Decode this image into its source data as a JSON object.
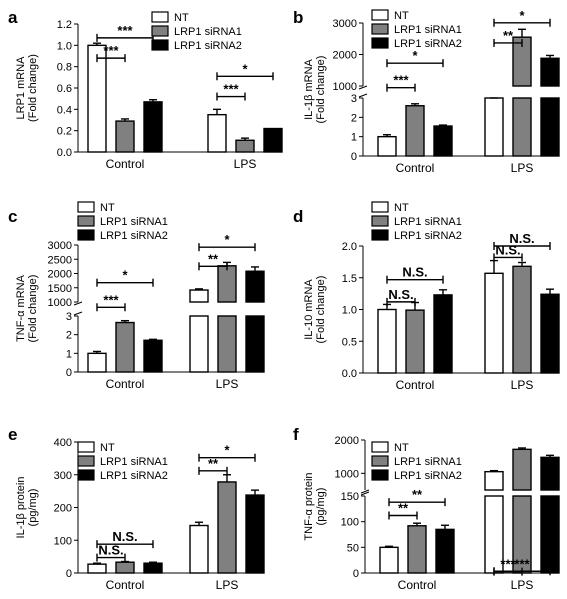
{
  "legend_labels": [
    "NT",
    "LRP1 siRNA1",
    "LRP1 siRNA2"
  ],
  "colors": {
    "NT": "#ffffff",
    "LRP1 siRNA1": "#808080",
    "LRP1 siRNA2": "#000000"
  },
  "chart_data": [
    {
      "panel": "a",
      "type": "bar",
      "categories": [
        "Control",
        "LPS"
      ],
      "ylabel": [
        "LRP1 mRNA",
        "(Fold change)"
      ],
      "ylim": [
        0.0,
        1.2
      ],
      "yticks": [
        "0.0",
        "0.2",
        "0.4",
        "0.6",
        "0.8",
        "1.0",
        "1.2"
      ],
      "series": [
        {
          "name": "NT",
          "values": [
            1.0,
            0.35
          ],
          "err": [
            0.02,
            0.05
          ]
        },
        {
          "name": "LRP1 siRNA1",
          "values": [
            0.29,
            0.11
          ],
          "err": [
            0.02,
            0.02
          ]
        },
        {
          "name": "LRP1 siRNA2",
          "values": [
            0.47,
            0.22
          ],
          "err": [
            0.02,
            0.0
          ]
        }
      ],
      "significance": [
        {
          "label": "***",
          "group": 0,
          "from": 0,
          "to": 1,
          "y": 0.88
        },
        {
          "label": "***",
          "group": 0,
          "from": 0,
          "to": 2,
          "y": 1.07
        },
        {
          "label": "***",
          "group": 1,
          "from": 0,
          "to": 1,
          "y": 0.52
        },
        {
          "label": "*",
          "group": 1,
          "from": 0,
          "to": 2,
          "y": 0.71
        }
      ]
    },
    {
      "panel": "b",
      "type": "bar",
      "broken_axis": true,
      "categories": [
        "Control",
        "LPS"
      ],
      "ylabel": [
        "IL-1β mRNA",
        "(Fold change)"
      ],
      "ylim_lower": [
        0,
        3
      ],
      "ylim_upper": [
        1000,
        3000
      ],
      "yticks_lower": [
        "0",
        "1",
        "2",
        "3"
      ],
      "yticks_upper": [
        "1000",
        "2000",
        "3000"
      ],
      "series": [
        {
          "name": "NT",
          "values": [
            1.0,
            950
          ],
          "err": [
            0.1,
            30
          ]
        },
        {
          "name": "LRP1 siRNA1",
          "values": [
            2.6,
            2550
          ],
          "err": [
            0.1,
            250
          ]
        },
        {
          "name": "LRP1 siRNA2",
          "values": [
            1.55,
            1880
          ],
          "err": [
            0.05,
            90
          ]
        }
      ],
      "significance": [
        {
          "label": "***",
          "group": 0,
          "from": 0,
          "to": 1,
          "y": 3.15
        },
        {
          "label": "*",
          "group": 0,
          "from": 0,
          "to": 2,
          "y": 4.0
        },
        {
          "label": "**",
          "group": 1,
          "from": 0,
          "to": 1,
          "y": 4.7
        },
        {
          "label": "*",
          "group": 1,
          "from": 0,
          "to": 2,
          "y": 5.4
        }
      ]
    },
    {
      "panel": "c",
      "type": "bar",
      "broken_axis": true,
      "categories": [
        "Control",
        "LPS"
      ],
      "ylabel": [
        "TNF-α mRNA",
        "(Fold change)"
      ],
      "ylim_lower": [
        0,
        3
      ],
      "ylim_upper": [
        1000,
        3000
      ],
      "yticks_lower": [
        "0",
        "1",
        "2",
        "3"
      ],
      "yticks_upper": [
        "1000",
        "1500",
        "2000",
        "2500",
        "3000"
      ],
      "series": [
        {
          "name": "NT",
          "values": [
            1.0,
            1420
          ],
          "err": [
            0.1,
            40
          ]
        },
        {
          "name": "LRP1 siRNA1",
          "values": [
            2.65,
            2270
          ],
          "err": [
            0.1,
            120
          ]
        },
        {
          "name": "LRP1 siRNA2",
          "values": [
            1.7,
            2080
          ],
          "err": [
            0.05,
            150
          ]
        }
      ],
      "significance": [
        {
          "label": "***",
          "group": 0,
          "from": 0,
          "to": 1,
          "y": 3.1
        },
        {
          "label": "*",
          "group": 0,
          "from": 0,
          "to": 2,
          "y": 4.0
        },
        {
          "label": "**",
          "group": 1,
          "from": 0,
          "to": 1,
          "y": 4.6
        },
        {
          "label": "*",
          "group": 1,
          "from": 0,
          "to": 2,
          "y": 5.3
        }
      ]
    },
    {
      "panel": "d",
      "type": "bar",
      "categories": [
        "Control",
        "LPS"
      ],
      "ylabel": [
        "IL-10 mRNA",
        "(Fold change)"
      ],
      "ylim": [
        0.0,
        2.0
      ],
      "yticks": [
        "0.0",
        "0.5",
        "1.0",
        "1.5",
        "2.0"
      ],
      "series": [
        {
          "name": "NT",
          "values": [
            1.0,
            1.57
          ],
          "err": [
            0.08,
            0.2
          ]
        },
        {
          "name": "LRP1 siRNA1",
          "values": [
            0.99,
            1.68
          ],
          "err": [
            0.12,
            0.06
          ]
        },
        {
          "name": "LRP1 siRNA2",
          "values": [
            1.23,
            1.24
          ],
          "err": [
            0.08,
            0.08
          ]
        }
      ],
      "significance": [
        {
          "label": "N.S.",
          "group": 0,
          "from": 0,
          "to": 1,
          "y": 1.12
        },
        {
          "label": "N.S.",
          "group": 0,
          "from": 0,
          "to": 2,
          "y": 1.47
        },
        {
          "label": "N.S.",
          "group": 1,
          "from": 0,
          "to": 1,
          "y": 1.82
        },
        {
          "label": "N.S.",
          "group": 1,
          "from": 0,
          "to": 2,
          "y": 2.0
        }
      ]
    },
    {
      "panel": "e",
      "type": "bar",
      "categories": [
        "Control",
        "LPS"
      ],
      "ylabel": [
        "IL-1β protein",
        "(pg/mg)"
      ],
      "ylim": [
        0,
        400
      ],
      "yticks": [
        "0",
        "100",
        "200",
        "300",
        "400"
      ],
      "series": [
        {
          "name": "NT",
          "values": [
            27,
            145
          ],
          "err": [
            3,
            10
          ]
        },
        {
          "name": "LRP1 siRNA1",
          "values": [
            33,
            278
          ],
          "err": [
            2,
            22
          ]
        },
        {
          "name": "LRP1 siRNA2",
          "values": [
            30,
            238
          ],
          "err": [
            3,
            15
          ]
        }
      ],
      "significance": [
        {
          "label": "N.S.",
          "group": 0,
          "from": 0,
          "to": 1,
          "y": 47
        },
        {
          "label": "N.S.",
          "group": 0,
          "from": 0,
          "to": 2,
          "y": 88
        },
        {
          "label": "**",
          "group": 1,
          "from": 0,
          "to": 1,
          "y": 312
        },
        {
          "label": "*",
          "group": 1,
          "from": 0,
          "to": 2,
          "y": 352
        }
      ]
    },
    {
      "panel": "f",
      "type": "bar",
      "broken_axis": true,
      "categories": [
        "Control",
        "LPS"
      ],
      "ylabel": [
        "TNF-α protein",
        "(pg/mg)"
      ],
      "ylim_lower": [
        0,
        150
      ],
      "ylim_upper": [
        500,
        2000
      ],
      "yticks_lower": [
        "0",
        "50",
        "100",
        "150"
      ],
      "yticks_upper": [
        "1000",
        "2000"
      ],
      "series": [
        {
          "name": "NT",
          "values": [
            50,
            1050
          ],
          "err": [
            2,
            30
          ]
        },
        {
          "name": "LRP1 siRNA1",
          "values": [
            92,
            1720
          ],
          "err": [
            5,
            40
          ]
        },
        {
          "name": "LRP1 siRNA2",
          "values": [
            85,
            1480
          ],
          "err": [
            8,
            60
          ]
        }
      ],
      "significance": [
        {
          "label": "**",
          "group": 0,
          "from": 0,
          "to": 1,
          "y": 112
        },
        {
          "label": "**",
          "group": 0,
          "from": 0,
          "to": 2,
          "y": 138
        },
        {
          "label": "***",
          "group": 1,
          "from": 0,
          "to": 1,
          "y": 2.7
        },
        {
          "label": "***",
          "group": 1,
          "from": 0,
          "to": 2,
          "y": 3.4
        }
      ]
    }
  ]
}
